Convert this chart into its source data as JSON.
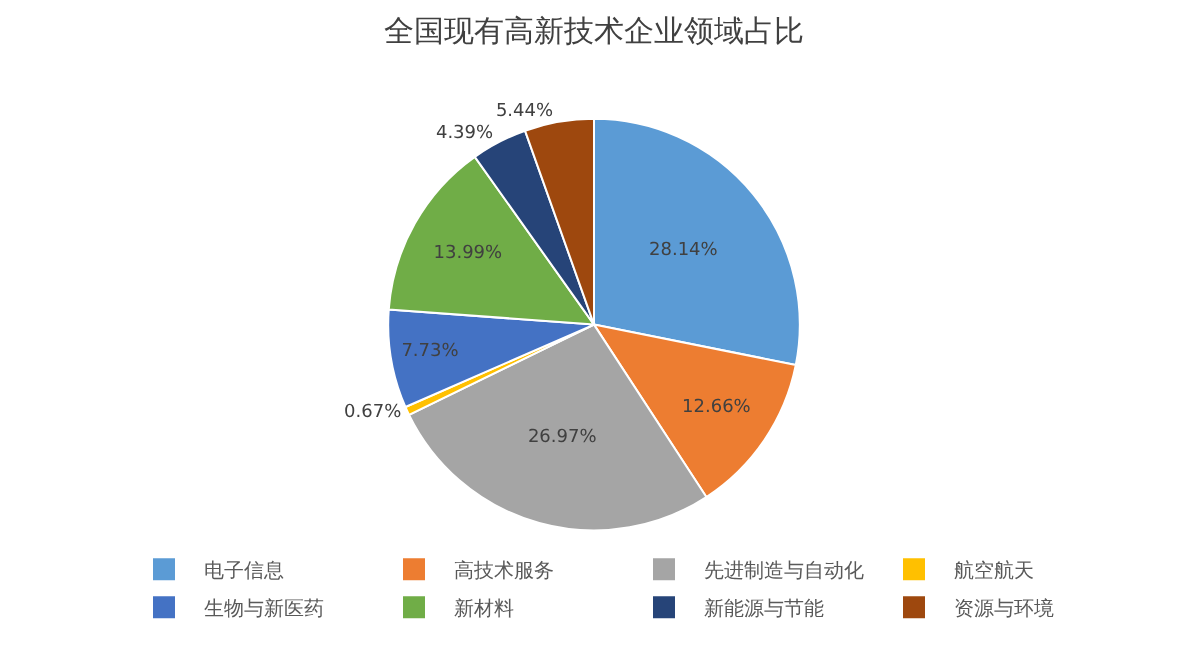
{
  "chart_data": {
    "type": "pie",
    "title": "全国现有高新技术企业领域占比",
    "categories": [
      "电子信息",
      "高技术服务",
      "先进制造与自动化",
      "航空航天",
      "生物与新医药",
      "新材料",
      "新能源与节能",
      "资源与环境"
    ],
    "values": [
      28.14,
      12.66,
      26.97,
      0.67,
      7.73,
      13.99,
      4.39,
      5.44
    ],
    "value_labels": [
      "28.14%",
      "12.66%",
      "26.97%",
      "0.67%",
      "7.73%",
      "13.99%",
      "4.39%",
      "5.44%"
    ],
    "colors": [
      "#5b9bd5",
      "#ed7d31",
      "#a5a5a5",
      "#ffc000",
      "#4472c4",
      "#70ad47",
      "#264478",
      "#9e480e"
    ],
    "legend": "bottom"
  }
}
